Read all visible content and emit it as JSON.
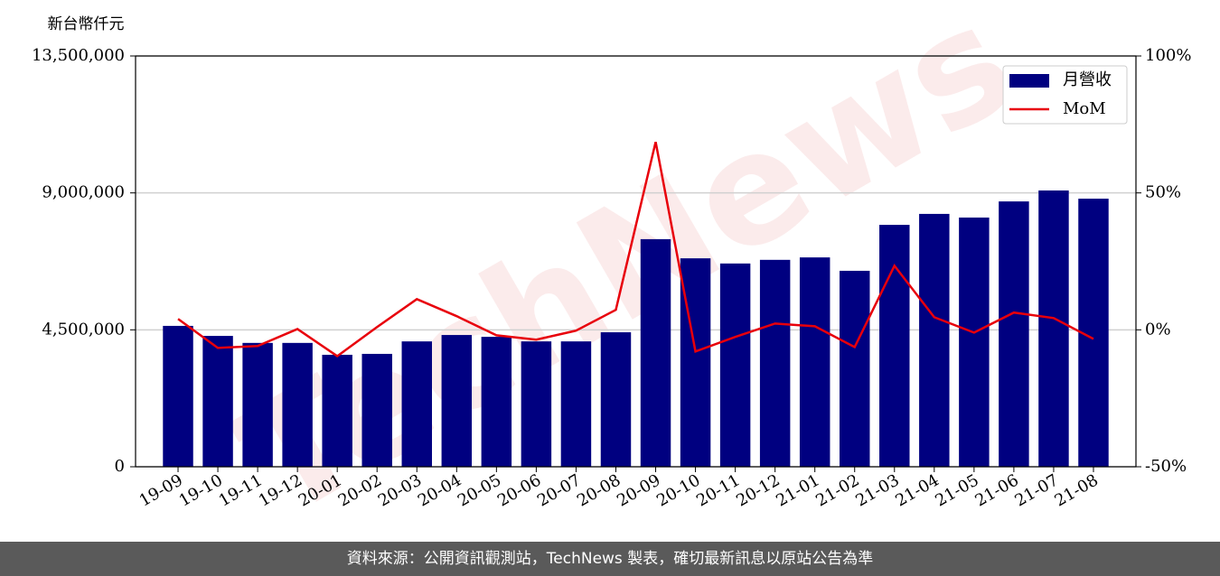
{
  "chart_data": {
    "type": "bar-line",
    "y_label": "新台幣仟元",
    "watermark": "TechNews",
    "categories": [
      "19-09",
      "19-10",
      "19-11",
      "19-12",
      "20-01",
      "20-02",
      "20-03",
      "20-04",
      "20-05",
      "20-06",
      "20-07",
      "20-08",
      "20-09",
      "20-10",
      "20-11",
      "20-12",
      "21-01",
      "21-02",
      "21-03",
      "21-04",
      "21-05",
      "21-06",
      "21-07",
      "21-08"
    ],
    "series": [
      {
        "name": "月營收",
        "type": "bar",
        "color": "#000080",
        "values": [
          4630000,
          4300000,
          4070000,
          4070000,
          3680000,
          3710000,
          4120000,
          4330000,
          4270000,
          4120000,
          4120000,
          4420000,
          7480000,
          6850000,
          6680000,
          6800000,
          6880000,
          6440000,
          7950000,
          8310000,
          8190000,
          8720000,
          9080000,
          8810000
        ]
      },
      {
        "name": "MoM",
        "type": "line",
        "axis": "y2",
        "color": "#e8000b",
        "values": [
          4,
          -6.6,
          -5.9,
          0.3,
          -9.6,
          1,
          11.2,
          5,
          -2,
          -3.6,
          -0.3,
          7.3,
          68.6,
          -7.9,
          -2.6,
          2.3,
          1.3,
          -6.3,
          23.4,
          4.6,
          -1,
          6.3,
          4.3,
          -3.3
        ]
      }
    ],
    "ylim": [
      0,
      13500000
    ],
    "yticks": [
      0,
      {
        "value": 4500000,
        "label": "4,500,000"
      },
      {
        "value": 9000000,
        "label": "9,000,000"
      },
      {
        "value": 13500000,
        "label": "13,500,000"
      }
    ],
    "y2lim": [
      -50,
      100
    ],
    "y2ticks": [
      {
        "value": -50,
        "label": "-50%"
      },
      {
        "value": 0,
        "label": "0%"
      },
      {
        "value": 50,
        "label": "50%"
      },
      {
        "value": 100,
        "label": "100%"
      }
    ],
    "grid": true,
    "legend": "upper right"
  },
  "footer": "資料來源：公開資訊觀測站，TechNews 製表，確切最新訊息以原站公告為準"
}
